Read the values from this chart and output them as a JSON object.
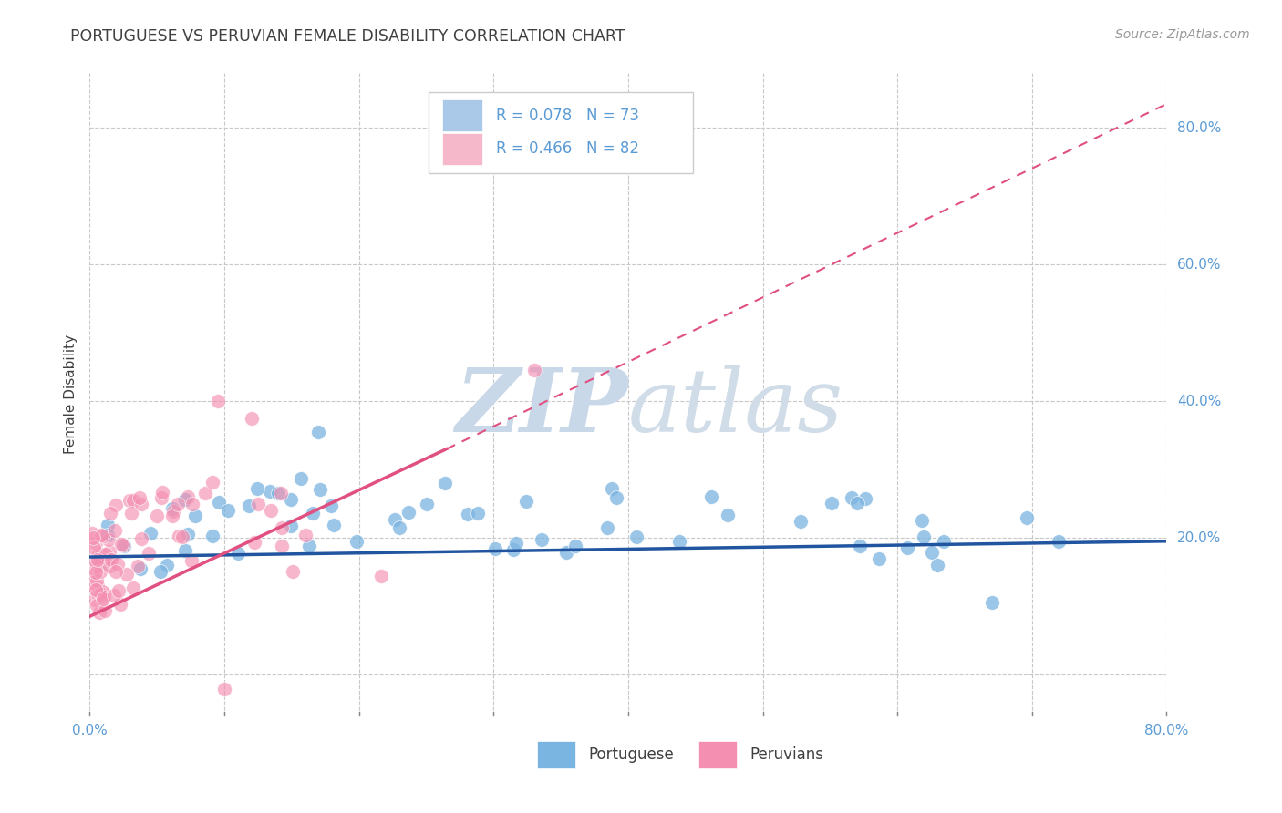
{
  "title": "PORTUGUESE VS PERUVIAN FEMALE DISABILITY CORRELATION CHART",
  "source_text": "Source: ZipAtlas.com",
  "ylabel": "Female Disability",
  "xlim": [
    0.0,
    0.8
  ],
  "ylim": [
    -0.06,
    0.88
  ],
  "xticks": [
    0.0,
    0.1,
    0.2,
    0.3,
    0.4,
    0.5,
    0.6,
    0.7,
    0.8
  ],
  "yticks": [
    0.0,
    0.2,
    0.4,
    0.6,
    0.8
  ],
  "yticklabels": [
    "",
    "20.0%",
    "40.0%",
    "60.0%",
    "80.0%"
  ],
  "grid_color": "#c8c8c8",
  "background_color": "#ffffff",
  "title_color": "#404040",
  "axis_label_color": "#404040",
  "tick_label_color": "#5b9bd5",
  "watermark_line1": "ZIP",
  "watermark_line2": "atlas",
  "watermark_color": "#d3e0ec",
  "legend_R1": "R = 0.078",
  "legend_N1": "N = 73",
  "legend_R2": "R = 0.466",
  "legend_N2": "N = 82",
  "legend_color": "#5b9bd5",
  "legend_box_color1": "#aac9e8",
  "legend_box_color2": "#f5b8cb",
  "blue_scatter_color": "#7ab4e0",
  "pink_scatter_color": "#f48fb1",
  "blue_line_color": "#2255a0",
  "pink_line_color": "#e05080",
  "blue_line": {
    "x0": 0.0,
    "y0": 0.172,
    "x1": 0.8,
    "y1": 0.195
  },
  "pink_line_solid": {
    "x0": 0.0,
    "y0": 0.085,
    "x1": 0.265,
    "y1": 0.33
  },
  "pink_line_dashed": {
    "x0": 0.265,
    "y0": 0.33,
    "x1": 0.8,
    "y1": 0.835
  }
}
